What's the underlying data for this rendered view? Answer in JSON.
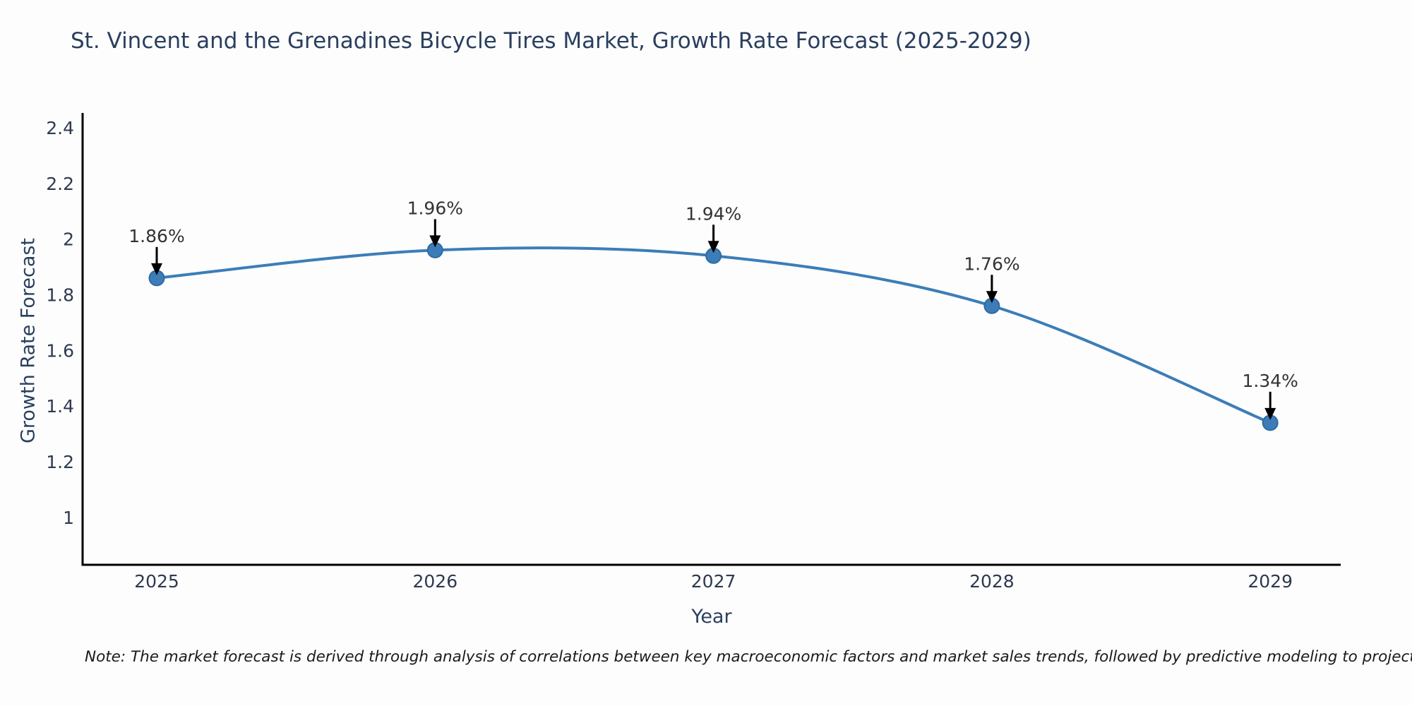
{
  "page": {
    "background_color": "#fdfdfd"
  },
  "title": {
    "text": "St. Vincent and the Grenadines Bicycle Tires Market, Growth Rate Forecast (2025-2029)",
    "color": "#2a3f5f"
  },
  "note": {
    "text": "Note: The market forecast is derived through analysis of correlations between key macroeconomic factors and market sales trends, followed by predictive modeling to project future sales"
  },
  "chart_data": {
    "type": "line",
    "title": "St. Vincent and the Grenadines Bicycle Tires Market, Growth Rate Forecast (2025-2029)",
    "xlabel": "Year",
    "ylabel": "Growth Rate Forecast",
    "categories": [
      "2025",
      "2026",
      "2027",
      "2028",
      "2029"
    ],
    "series": [
      {
        "name": "Growth Rate Forecast",
        "values": [
          1.86,
          1.96,
          1.94,
          1.76,
          1.34
        ]
      }
    ],
    "point_labels": [
      "1.86%",
      "1.96%",
      "1.94%",
      "1.76%",
      "1.34%"
    ],
    "y_tick_labels": [
      "2.4",
      "2.2",
      "2",
      "1.8",
      "1.6",
      "1.4",
      "1.2",
      "1"
    ],
    "y_tick_values": [
      2.4,
      2.2,
      2.0,
      1.8,
      1.6,
      1.4,
      1.2,
      1.0
    ],
    "ylim": [
      0.83,
      2.453
    ],
    "grid": false,
    "legend_position": "none",
    "line_shape": "spline",
    "colors": {
      "line": "#3c7db8",
      "marker_fill": "#3c7db8",
      "marker_edge": "#2f6ba3",
      "axis_line": "#000000",
      "tick_label": "#2e3a50",
      "annotation_text": "#333333",
      "arrow": "#000000"
    }
  }
}
